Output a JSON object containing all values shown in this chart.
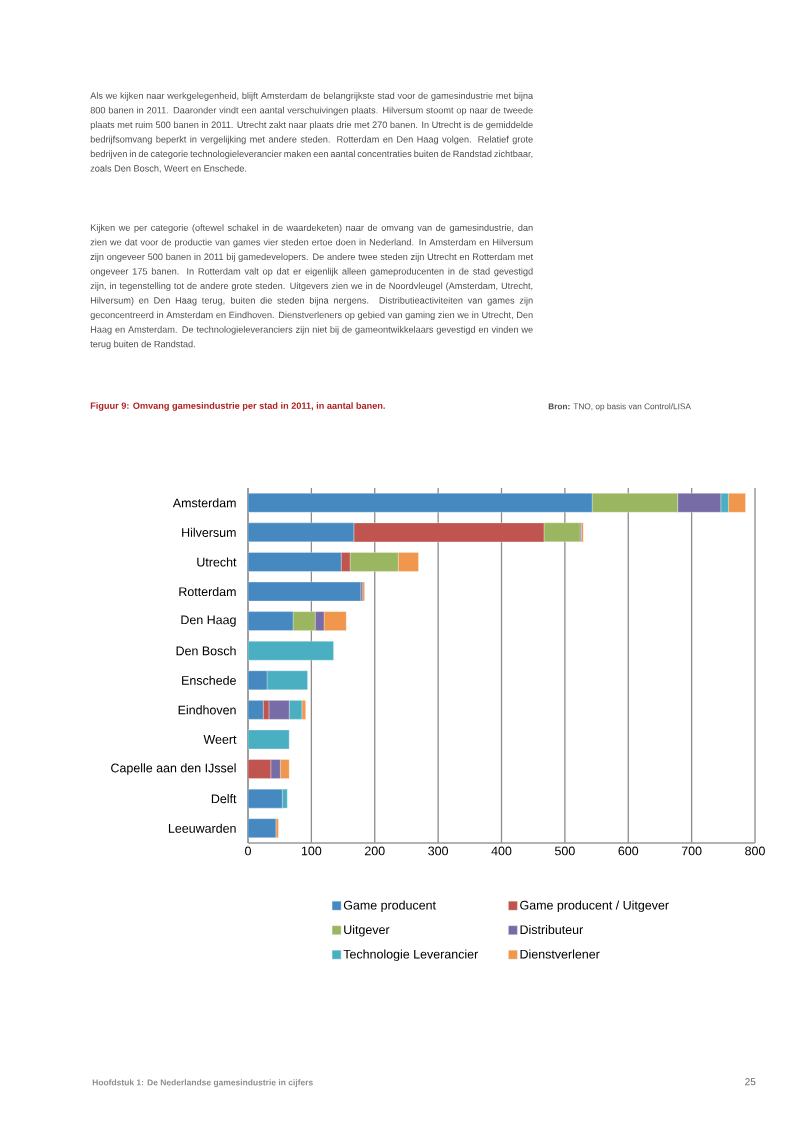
{
  "chart_data": {
    "type": "bar",
    "orientation": "horizontal",
    "stacked": true,
    "title": "Figuur 9: Omvang gamesindustrie per stad in 2011, in aantal banen.",
    "annotations": [
      "Als we kijken naar werkgelegenheid, blijft Amsterdam de belangrijkste stad voor de gamesindustrie met bijna 800 banen in 2011. Daaronder vindt een aantal verschuivingen plaats. Hilversum stoomt op naar de tweede plaats met ruim 500 banen in 2011. Utrecht zakt naar plaats drie met 270 banen. In Utrecht is de gemiddelde bedrijfsomvang beperkt in vergelijking met andere steden. Rotterdam en Den Haag volgen. Relatief grote bedrijven in de categorie technologieleverancier maken een aantal concentraties buiten de Randstad zichtbaar, zoals Den Bosch, Weert en Enschede.",
      "Kijken we per categorie (oftewel schakel in de waardeketen) naar de omvang van de gamesindustrie, dan zien we dat voor de productie van games vier steden ertoe doen in Nederland. In Amsterdam en Hilversum zijn ongeveer 500 banen in 2011 bij gamedevelopers. De andere twee steden zijn Utrecht en Rotterdam met ongeveer 175 banen. In Rotterdam valt op dat er eigenlijk alleen gameproducenten in de stad gevestigd zijn, in tegenstelling tot de andere grote steden. Uitgevers zien we in de Noordvleugel (Amsterdam, Utrecht, Hilversum) en Den Haag terug, buiten die steden bijna nergens. Distributieactiviteiten van games zijn geconcentreerd in Amsterdam en Eindhoven. Dienstverleners op gebied van gaming zien we in Utrecht, Den Haag en Amsterdam. De technologieleveranciers zijn niet bij de gameontwikkelaars gevestigd en vinden we terug buiten de Randstad.",
      "**Bron:** TNO, op basis van Control/LISA",
      "Hoofdstuk 1: De Nederlandse gamesindustrie in cijfers",
      "25"
    ],
    "categories": [
      "Amsterdam",
      "Hilversum",
      "Utrecht",
      "Rotterdam",
      "Den Haag",
      "Den Bosch",
      "Enschede",
      "Eindhoven",
      "Weert",
      "Capelle aan den IJssel",
      "Delft",
      "Leeuwarden"
    ],
    "series": [
      {
        "name": "Game producent",
        "color": "#4689c0",
        "values": [
          543,
          167,
          147,
          178,
          71,
          0,
          30,
          24,
          0,
          0,
          54,
          44
        ]
      },
      {
        "name": "Game producent / Uitgever",
        "color": "#c0554f",
        "values": [
          0,
          300,
          14,
          0,
          0,
          0,
          0,
          9,
          0,
          36,
          0,
          0
        ]
      },
      {
        "name": "Uitgever",
        "color": "#9bb660",
        "values": [
          135,
          57,
          76,
          0,
          35,
          0,
          0,
          0,
          0,
          0,
          0,
          0
        ]
      },
      {
        "name": "Distributeur",
        "color": "#786ca6",
        "values": [
          68,
          2,
          0,
          3,
          14,
          0,
          0,
          32,
          0,
          15,
          0,
          0
        ]
      },
      {
        "name": "Technologie Leverancier",
        "color": "#4bafc2",
        "values": [
          12,
          0,
          0,
          0,
          0,
          135,
          64,
          20,
          65,
          0,
          8,
          0
        ]
      },
      {
        "name": "Dienstverlener",
        "color": "#f0964d",
        "values": [
          27,
          3,
          32,
          3,
          35,
          0,
          0,
          6,
          0,
          14,
          0,
          4
        ]
      }
    ],
    "xlim": [
      0,
      800
    ],
    "xticks": [
      0,
      100,
      200,
      300,
      400,
      500,
      600,
      700,
      800
    ],
    "grid": "x",
    "legend": "bottom"
  }
}
